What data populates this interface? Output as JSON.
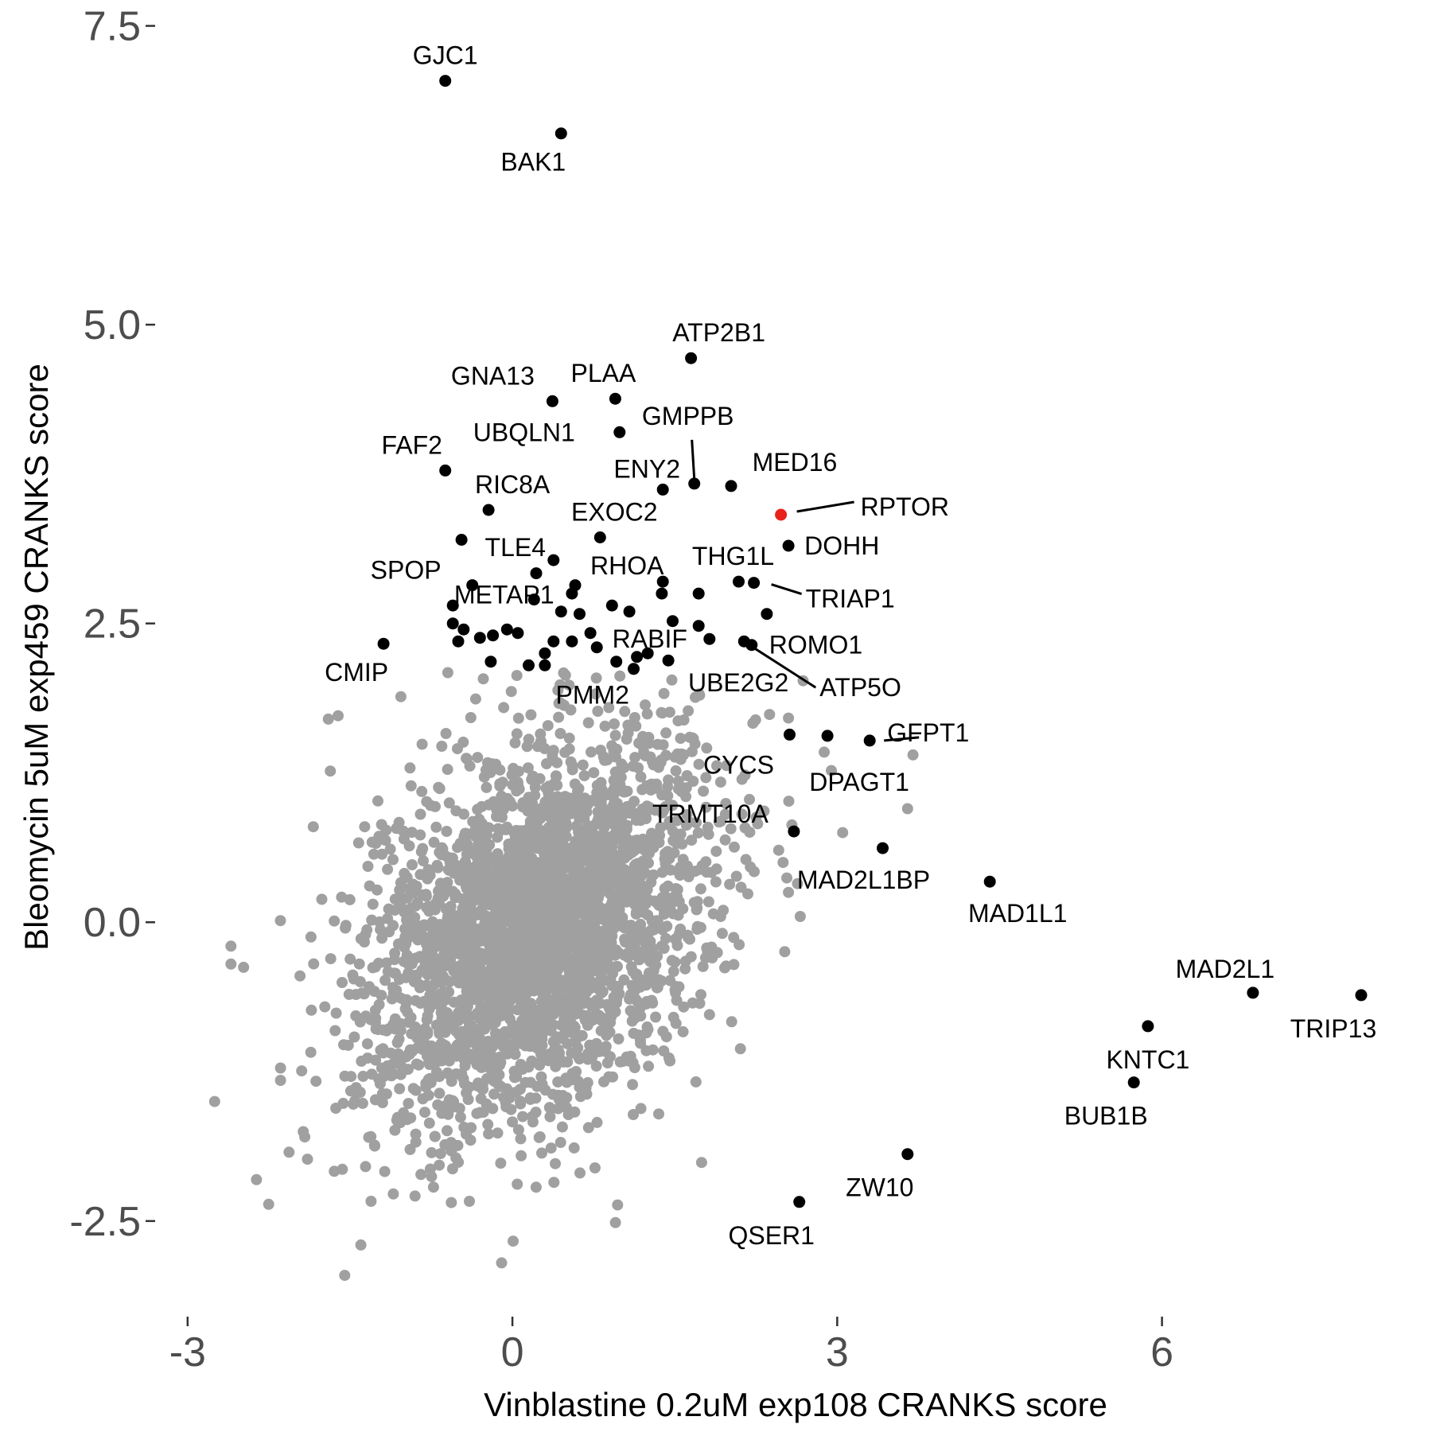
{
  "chart_data": {
    "type": "scatter",
    "xlabel": "Vinblastine 0.2uM exp108 CRANKS score",
    "ylabel": "Bleomycin 5uM exp459 CRANKS score",
    "xlim": [
      -3.3,
      8.2
    ],
    "ylim": [
      -3.3,
      7.65
    ],
    "x_ticks": [
      {
        "value": -3,
        "label": "-3"
      },
      {
        "value": 0,
        "label": "0"
      },
      {
        "value": 3,
        "label": "3"
      },
      {
        "value": 6,
        "label": "6"
      }
    ],
    "y_ticks": [
      {
        "value": -2.5,
        "label": "-2.5"
      },
      {
        "value": 0,
        "label": "0.0"
      },
      {
        "value": 2.5,
        "label": "2.5"
      },
      {
        "value": 5,
        "label": "5.0"
      },
      {
        "value": 7.5,
        "label": "7.5"
      }
    ],
    "grid": false,
    "legend": "none",
    "colors": {
      "background_genes": "#a0a0a0",
      "hit_genes": "#000000",
      "highlight_gene": "#e8221b"
    },
    "labeled_points": [
      {
        "label": "GJC1",
        "x": -0.62,
        "y": 7.04
      },
      {
        "label": "BAK1",
        "x": 0.45,
        "y": 6.6
      },
      {
        "label": "ATP2B1",
        "x": 1.65,
        "y": 4.72
      },
      {
        "label": "GNA13",
        "x": 0.37,
        "y": 4.36
      },
      {
        "label": "PLAA",
        "x": 0.95,
        "y": 4.38
      },
      {
        "label": "UBQLN1",
        "x": 0.99,
        "y": 4.1
      },
      {
        "label": "GMPPB",
        "x": 1.68,
        "y": 3.67
      },
      {
        "label": "FAF2",
        "x": -0.62,
        "y": 3.78
      },
      {
        "label": "ENY2",
        "x": 1.39,
        "y": 3.62
      },
      {
        "label": "MED16",
        "x": 2.02,
        "y": 3.65
      },
      {
        "label": "RIC8A",
        "x": -0.22,
        "y": 3.45
      },
      {
        "label": "RPTOR",
        "x": 2.48,
        "y": 3.41,
        "highlight": true
      },
      {
        "label": "EXOC2",
        "x": 0.81,
        "y": 3.22
      },
      {
        "label": "DOHH",
        "x": 2.55,
        "y": 3.15
      },
      {
        "label": "SPOP",
        "x": -0.47,
        "y": 3.2
      },
      {
        "label": "TLE4",
        "x": 0.38,
        "y": 3.03
      },
      {
        "label": "THG1L",
        "x": 2.09,
        "y": 2.85
      },
      {
        "label": "TRIAP1",
        "x": 2.23,
        "y": 2.84
      },
      {
        "label": "RHOA",
        "x": 1.39,
        "y": 2.85
      },
      {
        "label": "METAP1",
        "x": -0.37,
        "y": 2.82
      },
      {
        "label": "ROMO1",
        "x": 2.21,
        "y": 2.32
      },
      {
        "label": "ATP5O",
        "x": 2.14,
        "y": 2.35
      },
      {
        "label": "RABIF",
        "x": 1.82,
        "y": 2.37
      },
      {
        "label": "CMIP",
        "x": -1.19,
        "y": 2.33
      },
      {
        "label": "UBE2G2",
        "x": 1.44,
        "y": 2.19
      },
      {
        "label": "PMM2",
        "x": 0.96,
        "y": 2.18
      },
      {
        "label": "GFPT1",
        "x": 3.3,
        "y": 1.52
      },
      {
        "label": "DPAGT1",
        "x": 2.91,
        "y": 1.56
      },
      {
        "label": "CYCS",
        "x": 2.56,
        "y": 1.57
      },
      {
        "label": "TRMT10A",
        "x": 2.6,
        "y": 0.76
      },
      {
        "label": "MAD2L1BP",
        "x": 3.42,
        "y": 0.62
      },
      {
        "label": "MAD1L1",
        "x": 4.41,
        "y": 0.34
      },
      {
        "label": "MAD2L1",
        "x": 6.84,
        "y": -0.59
      },
      {
        "label": "TRIP13",
        "x": 7.84,
        "y": -0.61
      },
      {
        "label": "KNTC1",
        "x": 5.87,
        "y": -0.87
      },
      {
        "label": "BUB1B",
        "x": 5.74,
        "y": -1.34
      },
      {
        "label": "ZW10",
        "x": 3.65,
        "y": -1.94
      },
      {
        "label": "QSER1",
        "x": 2.65,
        "y": -2.34
      }
    ],
    "other_hit_points": [
      {
        "x": -0.55,
        "y": 2.5
      },
      {
        "x": -0.45,
        "y": 2.45
      },
      {
        "x": -0.3,
        "y": 2.38
      },
      {
        "x": -0.5,
        "y": 2.35
      },
      {
        "x": -0.18,
        "y": 2.4
      },
      {
        "x": -0.05,
        "y": 2.45
      },
      {
        "x": 0.2,
        "y": 2.7
      },
      {
        "x": 0.45,
        "y": 2.6
      },
      {
        "x": 0.55,
        "y": 2.75
      },
      {
        "x": 0.62,
        "y": 2.58
      },
      {
        "x": 0.38,
        "y": 2.35
      },
      {
        "x": 0.55,
        "y": 2.35
      },
      {
        "x": 0.72,
        "y": 2.42
      },
      {
        "x": 0.78,
        "y": 2.3
      },
      {
        "x": 0.92,
        "y": 2.65
      },
      {
        "x": 1.08,
        "y": 2.6
      },
      {
        "x": 1.25,
        "y": 2.25
      },
      {
        "x": 1.15,
        "y": 2.22
      },
      {
        "x": -0.2,
        "y": 2.18
      },
      {
        "x": 0.15,
        "y": 2.15
      },
      {
        "x": 0.3,
        "y": 2.15
      },
      {
        "x": 0.3,
        "y": 2.25
      },
      {
        "x": 0.22,
        "y": 2.92
      },
      {
        "x": 0.58,
        "y": 2.82
      },
      {
        "x": 1.38,
        "y": 2.75
      },
      {
        "x": 1.48,
        "y": 2.52
      },
      {
        "x": 1.72,
        "y": 2.75
      },
      {
        "x": 1.72,
        "y": 2.48
      },
      {
        "x": 2.35,
        "y": 2.58
      },
      {
        "x": 1.12,
        "y": 2.12
      },
      {
        "x": -0.55,
        "y": 2.65
      },
      {
        "x": 0.05,
        "y": 2.42
      }
    ]
  }
}
